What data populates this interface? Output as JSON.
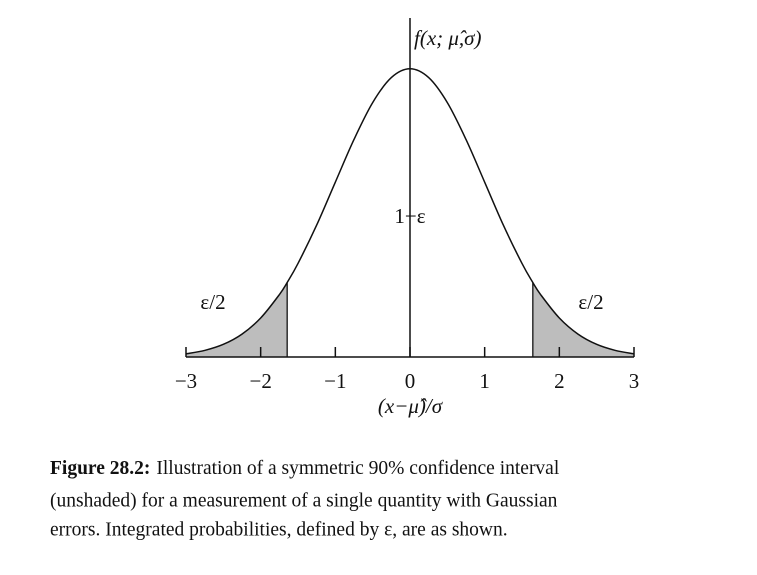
{
  "chart_data": {
    "type": "line",
    "y_label": "f(x; μ̂,σ)",
    "x_label": "(x−μ̂)/σ",
    "annotations": {
      "center": "1−ε",
      "left_tail": "ε/2",
      "right_tail": "ε/2"
    },
    "x": [
      -3,
      -2.75,
      -2.5,
      -2.25,
      -2,
      -1.75,
      -1.645,
      -1.5,
      -1.25,
      -1,
      -0.75,
      -0.5,
      -0.25,
      0,
      0.25,
      0.5,
      0.75,
      1,
      1.25,
      1.5,
      1.645,
      1.75,
      2,
      2.25,
      2.5,
      2.75,
      3
    ],
    "series": [
      {
        "color": "#111111",
        "values": [
          0.0044,
          0.0091,
          0.0175,
          0.0317,
          0.054,
          0.0863,
          0.1031,
          0.1295,
          0.1826,
          0.242,
          0.3011,
          0.3521,
          0.3867,
          0.3989,
          0.3867,
          0.3521,
          0.3011,
          0.242,
          0.1826,
          0.1295,
          0.1031,
          0.0863,
          0.054,
          0.0317,
          0.0175,
          0.0091,
          0.0044
        ]
      }
    ],
    "shade_limits": [
      -1.645,
      1.645
    ],
    "shade_color": "#bdbdbd",
    "xlim": [
      -3,
      3
    ],
    "ylim": [
      0,
      0.4
    ],
    "xticks": [
      {
        "value": -3,
        "label": "−3"
      },
      {
        "value": -2,
        "label": "−2"
      },
      {
        "value": -1,
        "label": "−1"
      },
      0,
      1,
      2,
      3
    ]
  },
  "caption": {
    "label": "Figure 28.2:",
    "lines": [
      "Illustration of a symmetric 90% confidence interval",
      "(unshaded) for a measurement of a single quantity with Gaussian",
      "errors. Integrated probabilities, defined by ε, are as shown."
    ]
  }
}
